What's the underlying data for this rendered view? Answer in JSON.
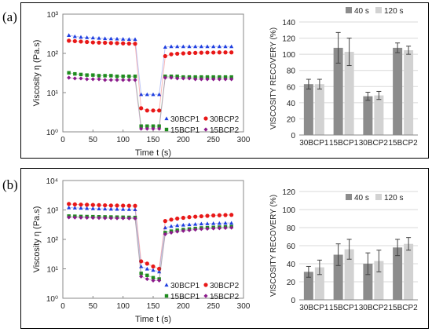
{
  "panels": [
    {
      "label": "(a)",
      "rheology": {
        "type": "scatter",
        "ylabel": "Viscosity η (Pa.s)",
        "xlabel": "Time t (s)",
        "y_scale": "log",
        "ylim": [
          1,
          1000
        ],
        "yticks": [
          "10⁰",
          "10¹",
          "10²",
          "10³"
        ],
        "xlim": [
          0,
          300
        ],
        "xticks": [
          "0",
          "50",
          "100",
          "150",
          "200",
          "250",
          "300"
        ],
        "legend_placement": "bottom-right",
        "series": [
          {
            "name": "30BCP1",
            "color": "#1f3fe0",
            "marker": "triangle",
            "x": [
              10,
              20,
              30,
              40,
              50,
              60,
              70,
              80,
              90,
              100,
              110,
              120,
              130,
              140,
              150,
              160,
              170,
              180,
              190,
              200,
              210,
              220,
              230,
              240,
              250,
              260,
              270,
              280
            ],
            "values": [
              290,
              270,
              260,
              255,
              250,
              245,
              240,
              238,
              235,
              232,
              230,
              228,
              9,
              9,
              9,
              9,
              145,
              150,
              150,
              150,
              150,
              150,
              150,
              150,
              150,
              150,
              150,
              150
            ]
          },
          {
            "name": "30BCP2",
            "color": "#e81818",
            "marker": "circle",
            "x": [
              10,
              20,
              30,
              40,
              50,
              60,
              70,
              80,
              90,
              100,
              110,
              120,
              130,
              140,
              150,
              160,
              170,
              180,
              190,
              200,
              210,
              220,
              230,
              240,
              250,
              260,
              270,
              280
            ],
            "values": [
              210,
              205,
              200,
              195,
              190,
              188,
              186,
              184,
              182,
              180,
              178,
              176,
              4,
              3.5,
              3.5,
              3.5,
              85,
              95,
              98,
              100,
              102,
              103,
              104,
              105,
              105,
              106,
              106,
              106
            ]
          },
          {
            "name": "15BCP1",
            "color": "#1e8c1e",
            "marker": "square",
            "x": [
              10,
              20,
              30,
              40,
              50,
              60,
              70,
              80,
              90,
              100,
              110,
              120,
              130,
              140,
              150,
              160,
              170,
              180,
              190,
              200,
              210,
              220,
              230,
              240,
              250,
              260,
              270,
              280
            ],
            "values": [
              32,
              30,
              29,
              28,
              28,
              27,
              27,
              27,
              26,
              26,
              26,
              26,
              1.4,
              1.4,
              1.4,
              1.4,
              26,
              26,
              26,
              25,
              25,
              25,
              25,
              25,
              25,
              25,
              25,
              25
            ]
          },
          {
            "name": "15BCP2",
            "color": "#8b1a8b",
            "marker": "diamond",
            "x": [
              10,
              20,
              30,
              40,
              50,
              60,
              70,
              80,
              90,
              100,
              110,
              120,
              130,
              140,
              150,
              160,
              170,
              180,
              190,
              200,
              210,
              220,
              230,
              240,
              250,
              260,
              270,
              280
            ],
            "values": [
              24,
              23,
              23,
              22,
              22,
              22,
              21,
              21,
              21,
              21,
              21,
              21,
              1.2,
              1.2,
              1.2,
              1.2,
              24,
              24,
              23,
              23,
              23,
              22,
              22,
              22,
              22,
              22,
              22,
              22
            ]
          }
        ]
      },
      "recovery": {
        "type": "bar",
        "ylabel": "VISCOSITY RECOVERY (%)",
        "categories": [
          "30BCP1",
          "15BCP1",
          "30BCP2",
          "15BCP2"
        ],
        "ylim": [
          0,
          140
        ],
        "yticks": [
          "0",
          "20",
          "40",
          "60",
          "80",
          "100",
          "120",
          "140"
        ],
        "legend_placement": "top-right",
        "series": [
          {
            "name": "40 s",
            "color": "#8c8c8c",
            "values": [
              63,
              108,
              48,
              108
            ],
            "errors": [
              6,
              19,
              5,
              6
            ]
          },
          {
            "name": "120 s",
            "color": "#d2d2d2",
            "values": [
              63,
              103,
              49,
              105
            ],
            "errors": [
              6,
              17,
              5,
              5
            ]
          }
        ]
      }
    },
    {
      "label": "(b)",
      "rheology": {
        "type": "scatter",
        "ylabel": "Viscosity η (Pa.s)",
        "xlabel": "Time t (s)",
        "y_scale": "log",
        "ylim": [
          1,
          10000
        ],
        "yticks": [
          "10⁰",
          "10¹",
          "10²",
          "10³",
          "10⁴"
        ],
        "xlim": [
          0,
          300
        ],
        "xticks": [
          "0",
          "50",
          "100",
          "150",
          "200",
          "250",
          "300"
        ],
        "legend_placement": "bottom-right",
        "series": [
          {
            "name": "30BCP1",
            "color": "#1f3fe0",
            "marker": "triangle",
            "x": [
              10,
              20,
              30,
              40,
              50,
              60,
              70,
              80,
              90,
              100,
              110,
              120,
              130,
              140,
              150,
              160,
              170,
              180,
              190,
              200,
              210,
              220,
              230,
              240,
              250,
              260,
              270,
              280
            ],
            "values": [
              1200,
              1180,
              1160,
              1140,
              1120,
              1100,
              1090,
              1080,
              1070,
              1060,
              1050,
              1040,
              12,
              10,
              9,
              8,
              250,
              280,
              300,
              310,
              320,
              330,
              340,
              345,
              350,
              355,
              360,
              360
            ]
          },
          {
            "name": "30BCP2",
            "color": "#e81818",
            "marker": "circle",
            "x": [
              10,
              20,
              30,
              40,
              50,
              60,
              70,
              80,
              90,
              100,
              110,
              120,
              130,
              140,
              150,
              160,
              170,
              180,
              190,
              200,
              210,
              220,
              230,
              240,
              250,
              260,
              270,
              280
            ],
            "values": [
              1600,
              1550,
              1520,
              1500,
              1480,
              1460,
              1440,
              1420,
              1410,
              1400,
              1390,
              1380,
              18,
              15,
              12,
              10,
              420,
              470,
              510,
              540,
              570,
              590,
              610,
              630,
              650,
              660,
              670,
              680
            ]
          },
          {
            "name": "15BCP1",
            "color": "#1e8c1e",
            "marker": "square",
            "x": [
              10,
              20,
              30,
              40,
              50,
              60,
              70,
              80,
              90,
              100,
              110,
              120,
              130,
              140,
              150,
              160,
              170,
              180,
              190,
              200,
              210,
              220,
              230,
              240,
              250,
              260,
              270,
              280
            ],
            "values": [
              620,
              610,
              600,
              595,
              590,
              585,
              580,
              575,
              570,
              565,
              560,
              555,
              7,
              6,
              5,
              4.5,
              170,
              190,
              205,
              215,
              225,
              235,
              245,
              250,
              255,
              260,
              265,
              270
            ]
          },
          {
            "name": "15BCP2",
            "color": "#8b1a8b",
            "marker": "diamond",
            "x": [
              10,
              20,
              30,
              40,
              50,
              60,
              70,
              80,
              90,
              100,
              110,
              120,
              130,
              140,
              150,
              160,
              170,
              180,
              190,
              200,
              210,
              220,
              230,
              240,
              250,
              260,
              270,
              280
            ],
            "values": [
              560,
              555,
              550,
              545,
              540,
              535,
              530,
              528,
              525,
              522,
              520,
              518,
              5.5,
              4.5,
              4,
              4,
              150,
              170,
              185,
              195,
              205,
              215,
              225,
              230,
              235,
              240,
              245,
              250
            ]
          }
        ]
      },
      "recovery": {
        "type": "bar",
        "ylabel": "VISCOSITY RECOVERY (%)",
        "categories": [
          "30BCP1",
          "15BCP1",
          "30BCP2",
          "15BCP2"
        ],
        "ylim": [
          0,
          120
        ],
        "yticks": [
          "0",
          "20",
          "40",
          "60",
          "80",
          "100",
          "120"
        ],
        "legend_placement": "top-right",
        "series": [
          {
            "name": "40 s",
            "color": "#8c8c8c",
            "values": [
              31,
              50,
              40,
              58
            ],
            "errors": [
              6,
              12,
              12,
              9
            ]
          },
          {
            "name": "120 s",
            "color": "#d2d2d2",
            "values": [
              36,
              56,
              43,
              62
            ],
            "errors": [
              8,
              11,
              12,
              7
            ]
          }
        ]
      }
    }
  ]
}
